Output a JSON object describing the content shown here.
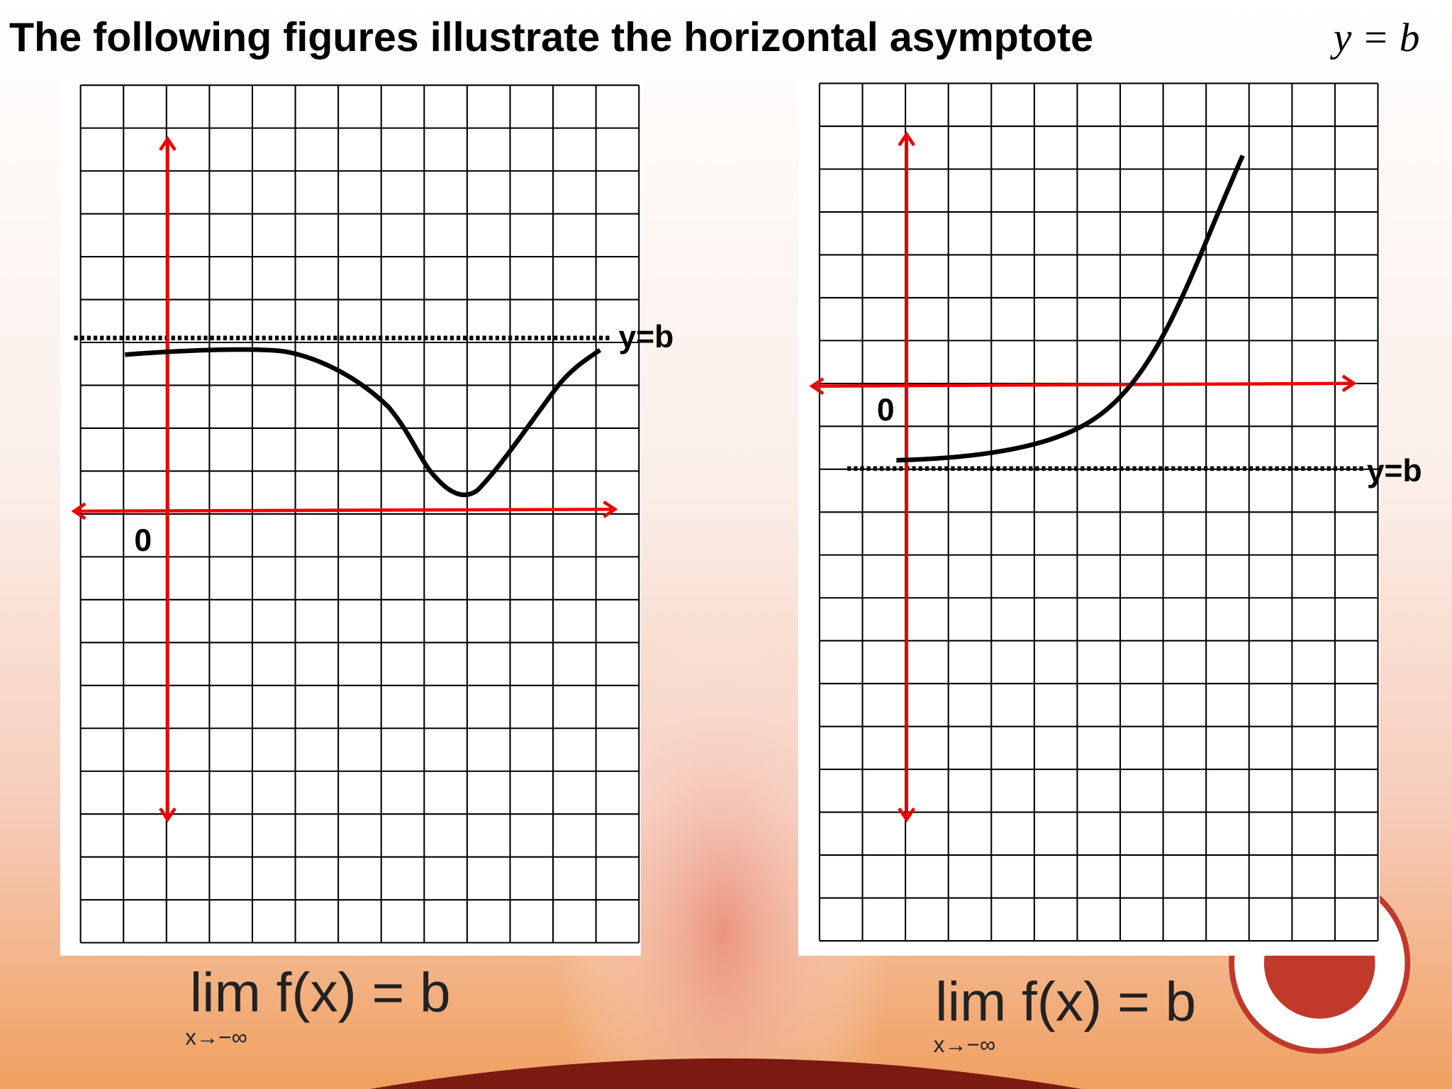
{
  "header": {
    "title": "The following figures illustrate the horizontal asymptote",
    "title_math": "y = b"
  },
  "figures": [
    {
      "origin_label": "0",
      "asymptote_label": "y=b",
      "limit": "lim f(x) = b",
      "limit_sub": "x→−∞"
    },
    {
      "origin_label": "0",
      "asymptote_label": "y=b",
      "limit": "lim f(x) = b",
      "limit_sub": "x→−∞"
    }
  ]
}
